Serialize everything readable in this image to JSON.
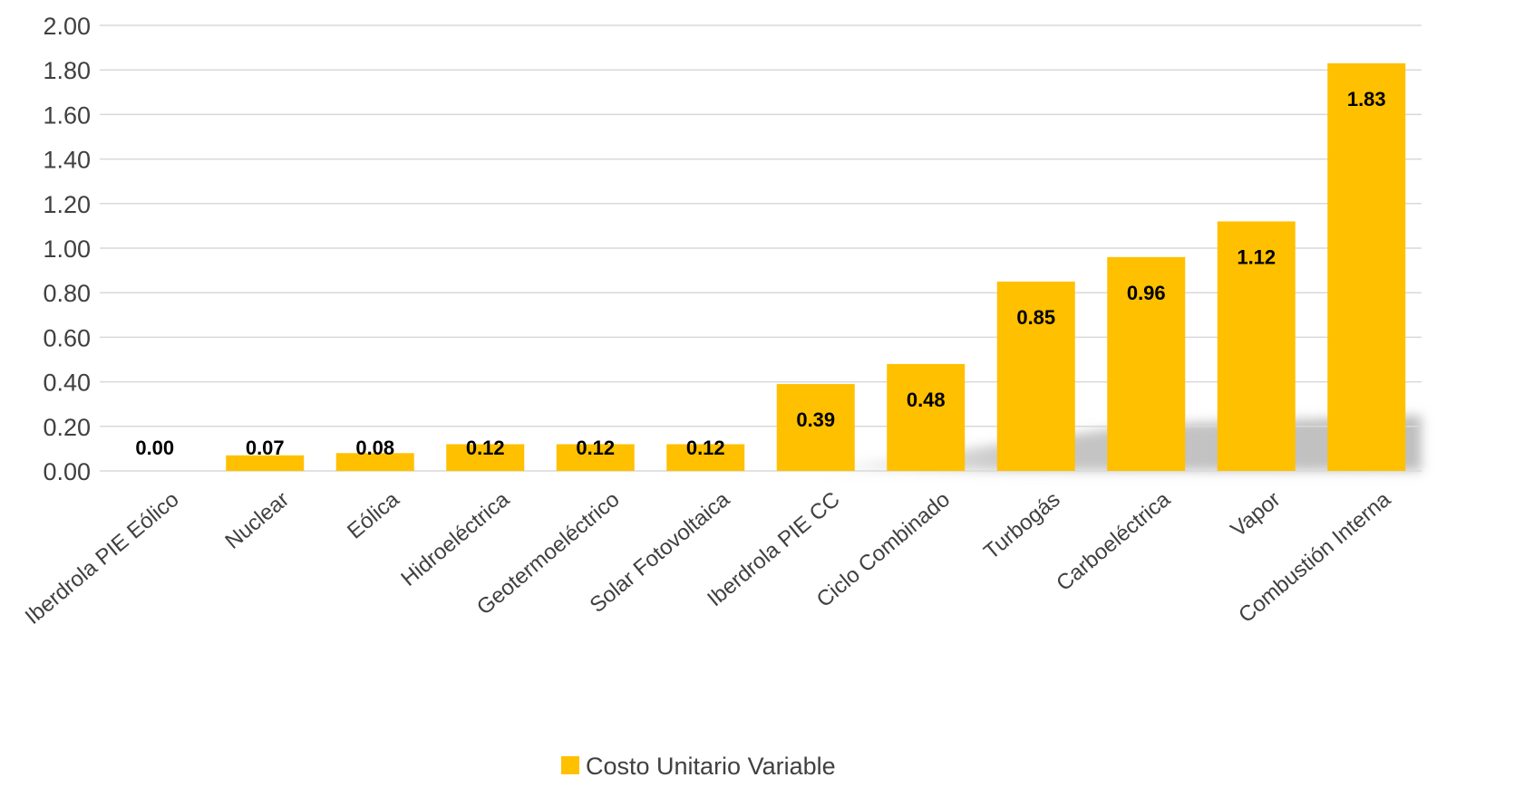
{
  "chart_data": {
    "type": "bar",
    "categories": [
      "Iberdrola PIE Eólico",
      "Nuclear",
      "Eólica",
      "Hidroeléctrica",
      "Geotermoeléctrico",
      "Solar Fotovoltaica",
      "Iberdrola PIE CC",
      "Ciclo Combinado",
      "Turbogás",
      "Carboeléctrica",
      "Vapor",
      "Combustión Interna"
    ],
    "series": [
      {
        "name": "Costo Unitario Variable",
        "values": [
          0.0,
          0.07,
          0.08,
          0.12,
          0.12,
          0.12,
          0.39,
          0.48,
          0.85,
          0.96,
          1.12,
          1.83
        ],
        "data_labels": [
          "0.00",
          "0.07",
          "0.08",
          "0.12",
          "0.12",
          "0.12",
          "0.39",
          "0.48",
          "0.85",
          "0.96",
          "1.12",
          "1.83"
        ],
        "color": "#FFC000"
      }
    ],
    "title": "",
    "xlabel": "",
    "ylabel": "",
    "ylim": [
      0,
      2
    ],
    "yticks": [
      "0.00",
      "0.20",
      "0.40",
      "0.60",
      "0.80",
      "1.00",
      "1.20",
      "1.40",
      "1.60",
      "1.80",
      "2.00"
    ],
    "grid": true,
    "gridline_color": "#D9D9D9",
    "legend_position": "bottom",
    "shadow_color": "#BFBFBF"
  }
}
